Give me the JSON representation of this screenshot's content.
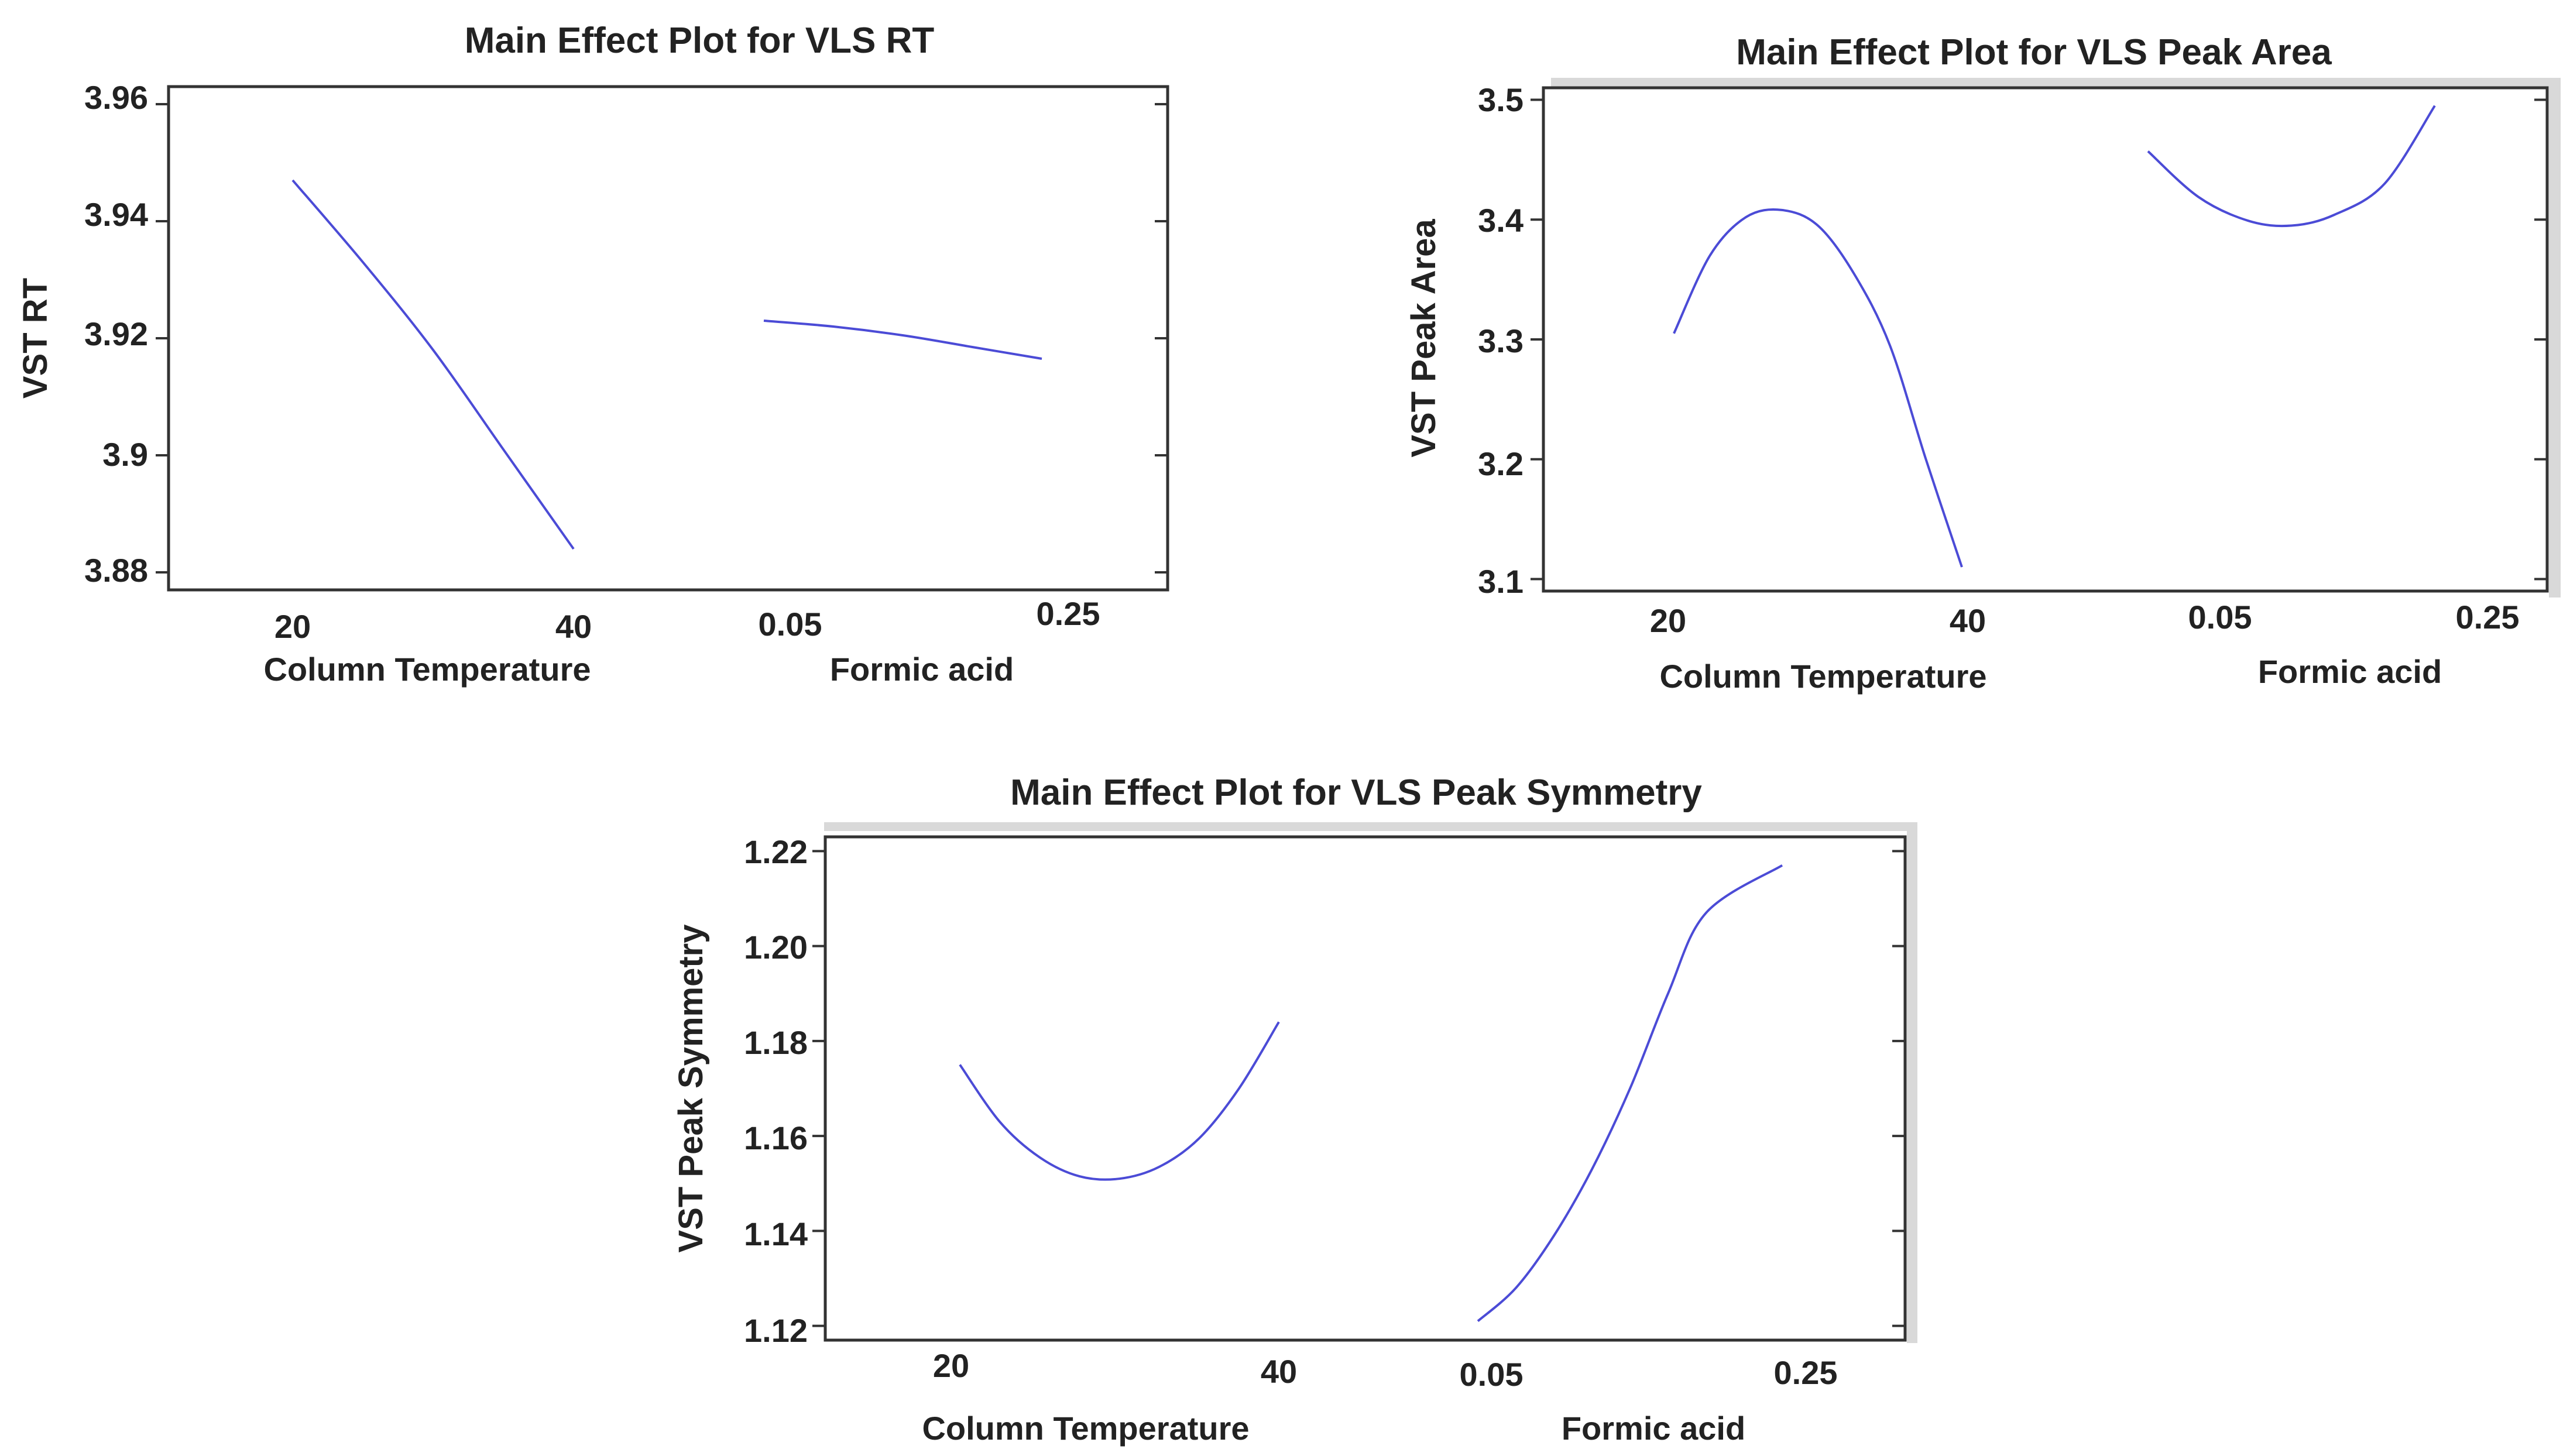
{
  "chart_data": [
    {
      "id": "rt",
      "type": "line",
      "title": "Main Effect Plot for VLS RT",
      "ylabel": "VST RT",
      "ylim": [
        3.877,
        3.963
      ],
      "yticks": [
        3.88,
        3.9,
        3.92,
        3.94,
        3.96
      ],
      "ytick_labels": [
        "3.88",
        "3.9",
        "3.92",
        "3.94",
        "3.96"
      ],
      "factors": [
        {
          "xlabel": "Column Temperature",
          "tick_labels": [
            "20",
            "40"
          ],
          "points": [
            [
              20,
              3.947
            ],
            [
              25,
              3.933
            ],
            [
              30,
              3.918
            ],
            [
              35,
              3.901
            ],
            [
              40,
              3.884
            ]
          ]
        },
        {
          "xlabel": "Formic acid",
          "tick_labels": [
            "0.05",
            "0.25"
          ],
          "points": [
            [
              0.05,
              3.923
            ],
            [
              0.1,
              3.922
            ],
            [
              0.15,
              3.9205
            ],
            [
              0.2,
              3.9185
            ],
            [
              0.25,
              3.9165
            ]
          ]
        }
      ]
    },
    {
      "id": "area",
      "type": "line",
      "title": "Main Effect Plot for VLS Peak Area",
      "ylabel": "VST Peak Area",
      "ylim": [
        3.09,
        3.51
      ],
      "yticks": [
        3.1,
        3.2,
        3.3,
        3.4,
        3.5
      ],
      "ytick_labels": [
        "3.1",
        "3.2",
        "3.3",
        "3.4",
        "3.5"
      ],
      "factors": [
        {
          "xlabel": "Column Temperature",
          "tick_labels": [
            "20",
            "40"
          ],
          "points": [
            [
              20,
              3.305
            ],
            [
              22.5,
              3.37
            ],
            [
              25,
              3.402
            ],
            [
              27.5,
              3.408
            ],
            [
              30,
              3.395
            ],
            [
              32.5,
              3.355
            ],
            [
              35,
              3.295
            ],
            [
              37.5,
              3.2
            ],
            [
              40,
              3.11
            ]
          ]
        },
        {
          "xlabel": "Formic acid",
          "tick_labels": [
            "0.05",
            "0.25"
          ],
          "points": [
            [
              0.05,
              3.457
            ],
            [
              0.085,
              3.419
            ],
            [
              0.12,
              3.399
            ],
            [
              0.15,
              3.395
            ],
            [
              0.18,
              3.404
            ],
            [
              0.215,
              3.43
            ],
            [
              0.25,
              3.495
            ]
          ]
        }
      ]
    },
    {
      "id": "sym",
      "type": "line",
      "title": "Main Effect Plot for VLS Peak Symmetry",
      "ylabel": "VST Peak Symmetry",
      "ylim": [
        1.117,
        1.223
      ],
      "yticks": [
        1.12,
        1.14,
        1.16,
        1.18,
        1.2,
        1.22
      ],
      "ytick_labels": [
        "1.12",
        "1.14",
        "1.16",
        "1.18",
        "1.20",
        "1.22"
      ],
      "factors": [
        {
          "xlabel": "Column Temperature",
          "tick_labels": [
            "20",
            "40"
          ],
          "points": [
            [
              20,
              1.175
            ],
            [
              22.5,
              1.163
            ],
            [
              25,
              1.1555
            ],
            [
              27.5,
              1.1515
            ],
            [
              30,
              1.151
            ],
            [
              32.5,
              1.1535
            ],
            [
              35,
              1.1595
            ],
            [
              37.5,
              1.17
            ],
            [
              40,
              1.184
            ]
          ]
        },
        {
          "xlabel": "Formic acid",
          "tick_labels": [
            "0.05",
            "0.25"
          ],
          "points": [
            [
              0.05,
              1.121
            ],
            [
              0.075,
              1.128
            ],
            [
              0.1,
              1.139
            ],
            [
              0.125,
              1.153
            ],
            [
              0.15,
              1.17
            ],
            [
              0.175,
              1.19
            ],
            [
              0.2,
              1.207
            ],
            [
              0.25,
              1.217
            ]
          ]
        }
      ]
    }
  ]
}
